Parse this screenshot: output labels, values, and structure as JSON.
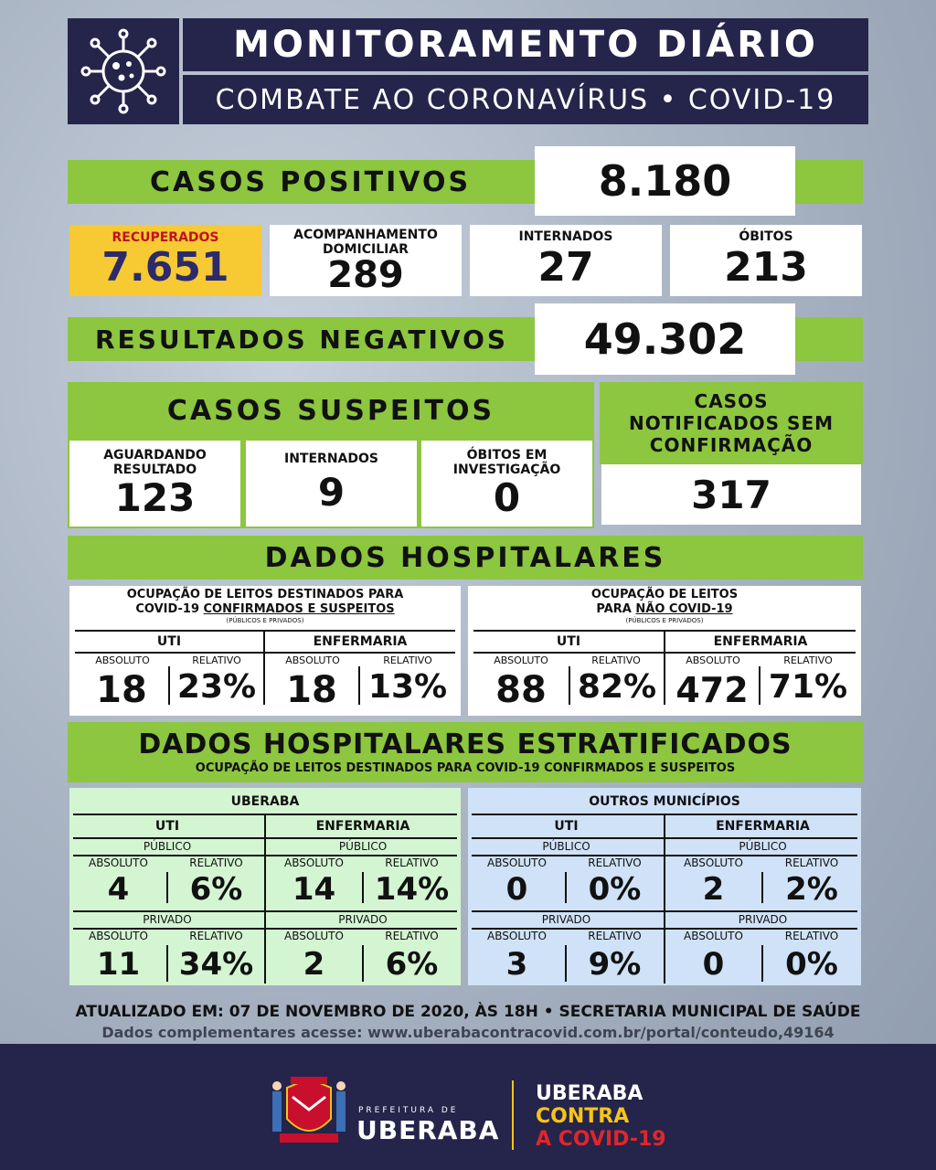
{
  "header": {
    "title": "MONITORAMENTO DIÁRIO",
    "subtitle": "COMBATE AO CORONAVÍRUS • COVID-19",
    "icon": "virus-icon"
  },
  "positivos": {
    "label": "CASOS POSITIVOS",
    "value": "8.180"
  },
  "cards": {
    "recuperados": {
      "label": "RECUPERADOS",
      "value": "7.651"
    },
    "domiciliar": {
      "label": "ACOMPANHAMENTO DOMICILIAR",
      "value": "289"
    },
    "internados": {
      "label": "INTERNADOS",
      "value": "27"
    },
    "obitos": {
      "label": "ÓBITOS",
      "value": "213"
    }
  },
  "negativos": {
    "label": "RESULTADOS NEGATIVOS",
    "value": "49.302"
  },
  "suspeitos": {
    "label": "CASOS SUSPEITOS",
    "aguardando": {
      "label": "AGUARDANDO RESULTADO",
      "value": "123"
    },
    "internados": {
      "label": "INTERNADOS",
      "value": "9"
    },
    "obitos": {
      "label": "ÓBITOS EM INVESTIGAÇÃO",
      "value": "0"
    }
  },
  "notificados": {
    "label": "CASOS NOTIFICADOS SEM CONFIRMAÇÃO",
    "value": "317"
  },
  "hospitalares": {
    "label": "DADOS HOSPITALARES",
    "covid": {
      "title1": "OCUPAÇÃO DE LEITOS DESTINADOS PARA",
      "title2a": "COVID-19 ",
      "title2b": "CONFIRMADOS E SUSPEITOS",
      "note": "(PÚBLICOS E PRIVADOS)",
      "uti": "UTI",
      "enfermaria": "ENFERMARIA",
      "absoluto": "ABSOLUTO",
      "relativo": "RELATIVO",
      "uti_abs": "18",
      "uti_rel": "23%",
      "enf_abs": "18",
      "enf_rel": "13%"
    },
    "nao_covid": {
      "title1": "OCUPAÇÃO DE LEITOS",
      "title2a": "PARA ",
      "title2b": "NÃO COVID-19",
      "note": "(PÚBLICOS E PRIVADOS)",
      "uti": "UTI",
      "enfermaria": "ENFERMARIA",
      "absoluto": "ABSOLUTO",
      "relativo": "RELATIVO",
      "uti_abs": "88",
      "uti_rel": "82%",
      "enf_abs": "472",
      "enf_rel": "71%"
    }
  },
  "estratificados": {
    "title": "DADOS HOSPITALARES ESTRATIFICADOS",
    "subtitle": "OCUPAÇÃO DE LEITOS DESTINADOS PARA COVID-19 CONFIRMADOS E SUSPEITOS",
    "uberaba": {
      "title": "UBERABA",
      "uti": "UTI",
      "enfermaria": "ENFERMARIA",
      "publico": "PÚBLICO",
      "privado": "PRIVADO",
      "absoluto": "ABSOLUTO",
      "relativo": "RELATIVO",
      "uti_pub_abs": "4",
      "uti_pub_rel": "6%",
      "enf_pub_abs": "14",
      "enf_pub_rel": "14%",
      "uti_priv_abs": "11",
      "uti_priv_rel": "34%",
      "enf_priv_abs": "2",
      "enf_priv_rel": "6%"
    },
    "outros": {
      "title": "OUTROS MUNICÍPIOS",
      "uti": "UTI",
      "enfermaria": "ENFERMARIA",
      "publico": "PÚBLICO",
      "privado": "PRIVADO",
      "absoluto": "ABSOLUTO",
      "relativo": "RELATIVO",
      "uti_pub_abs": "0",
      "uti_pub_rel": "0%",
      "enf_pub_abs": "2",
      "enf_pub_rel": "2%",
      "uti_priv_abs": "3",
      "uti_priv_rel": "9%",
      "enf_priv_abs": "0",
      "enf_priv_rel": "0%"
    }
  },
  "atualizado": "ATUALIZADO EM: 07 DE NOVEMBRO DE 2020, ÀS 18H • SECRETARIA MUNICIPAL DE SAÚDE",
  "complementares": "Dados complementares acesse: www.uberabacontracovid.com.br/portal/conteudo,49164",
  "footer": {
    "prefeitura_small": "PREFEITURA DE",
    "prefeitura_big": "UBERABA",
    "campaign1": "UBERABA",
    "campaign2": "CONTRA",
    "campaign3": "A COVID-19",
    "colors": {
      "navy": "#25244a",
      "green": "#8dc63f",
      "yellow": "#f7c933",
      "red": "#e0262b",
      "campaign_yellow": "#f5c518"
    }
  }
}
